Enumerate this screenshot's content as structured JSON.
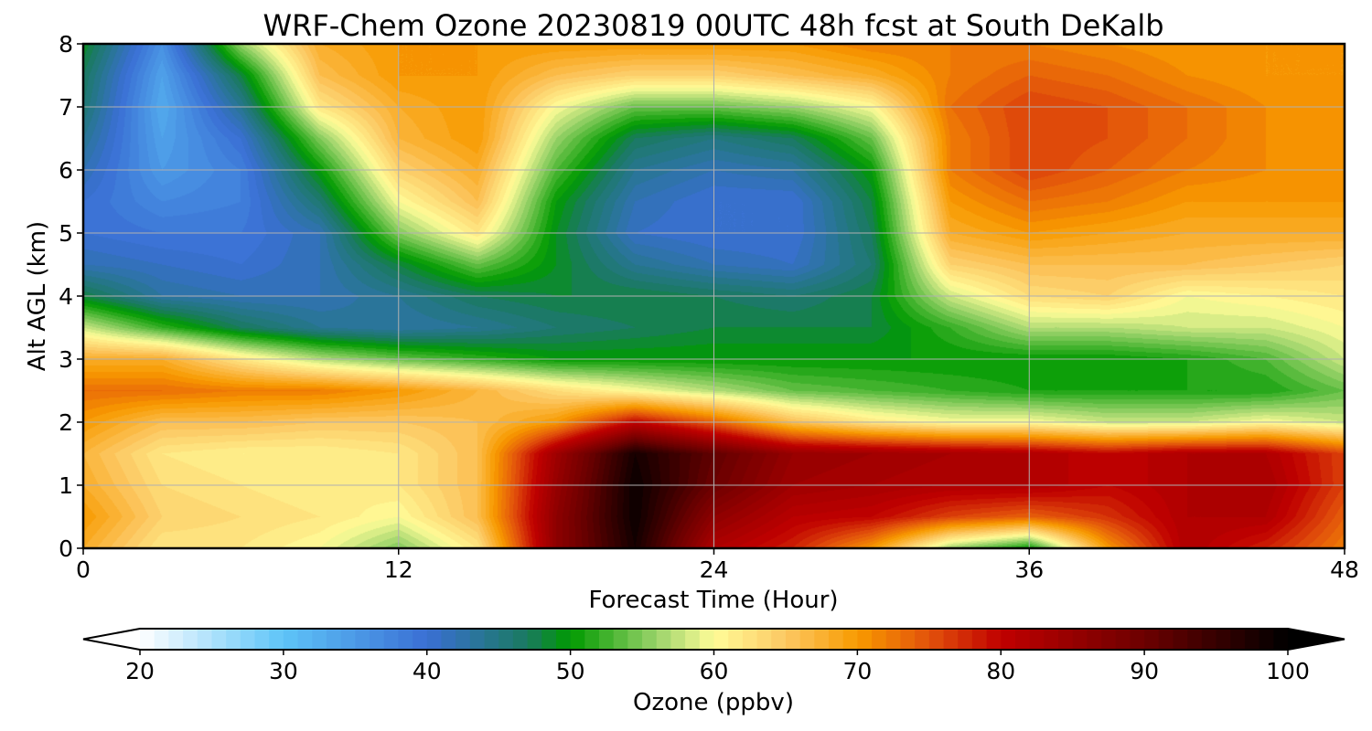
{
  "chart_data": {
    "type": "heatmap",
    "title": "WRF-Chem Ozone  20230819 00UTC 48h fcst at South DeKalb",
    "xlabel": "Forecast Time (Hour)",
    "ylabel": "Alt AGL (km)",
    "xlim": [
      0,
      48
    ],
    "ylim": [
      0,
      8
    ],
    "xticks": [
      0,
      12,
      24,
      36,
      48
    ],
    "yticks": [
      0,
      1,
      2,
      3,
      4,
      5,
      6,
      7,
      8
    ],
    "grid": true,
    "colorbar": {
      "label": "Ozone  (ppbv)",
      "orientation": "horizontal",
      "position": "bottom",
      "range": [
        20,
        100
      ],
      "ticks": [
        20,
        30,
        40,
        50,
        60,
        70,
        80,
        90,
        100
      ],
      "extend": "both",
      "levels": 80,
      "color_stops": [
        {
          "value": 20,
          "color": "#ffffff"
        },
        {
          "value": 30,
          "color": "#5ec4f8"
        },
        {
          "value": 40,
          "color": "#3a6fd4"
        },
        {
          "value": 47,
          "color": "#1a7a60"
        },
        {
          "value": 50,
          "color": "#009a00"
        },
        {
          "value": 56,
          "color": "#9ad36a"
        },
        {
          "value": 60,
          "color": "#fffc98"
        },
        {
          "value": 65,
          "color": "#fcc863"
        },
        {
          "value": 70,
          "color": "#f89a00"
        },
        {
          "value": 75,
          "color": "#e2520b"
        },
        {
          "value": 80,
          "color": "#c00000"
        },
        {
          "value": 90,
          "color": "#6c0000"
        },
        {
          "value": 100,
          "color": "#000000"
        }
      ]
    },
    "x": [
      0,
      3,
      6,
      9,
      12,
      15,
      18,
      21,
      24,
      27,
      30,
      33,
      36,
      39,
      42,
      45,
      48
    ],
    "y": [
      0,
      0.5,
      1,
      1.5,
      2,
      2.5,
      3,
      3.5,
      4,
      4.5,
      5,
      5.5,
      6,
      6.5,
      7,
      7.5,
      8
    ],
    "z": [
      [
        68,
        62,
        62,
        60,
        55,
        62,
        86,
        98,
        82,
        78,
        70,
        56,
        50,
        70,
        82,
        78,
        72
      ],
      [
        70,
        64,
        63,
        62,
        60,
        66,
        86,
        99,
        86,
        81,
        80,
        76,
        74,
        77,
        82,
        82,
        74
      ],
      [
        68,
        63,
        62,
        61,
        62,
        66,
        85,
        99,
        90,
        84,
        83,
        82,
        82,
        80,
        82,
        83,
        76
      ],
      [
        67,
        62,
        61,
        61,
        62,
        66,
        84,
        98,
        91,
        85,
        84,
        83,
        82,
        80,
        82,
        82,
        76
      ],
      [
        70,
        66,
        66,
        65,
        65,
        66,
        70,
        80,
        74,
        66,
        62,
        60,
        60,
        58,
        58,
        60,
        58
      ],
      [
        73,
        73,
        72,
        72,
        70,
        67,
        63,
        60,
        57,
        54,
        53,
        52,
        51,
        51,
        51,
        51,
        54
      ],
      [
        68,
        68,
        62,
        57,
        54,
        52,
        50,
        50,
        50,
        50,
        50,
        50,
        50,
        50,
        51,
        53,
        58
      ],
      [
        58,
        52,
        47,
        44,
        43,
        44,
        46,
        47,
        48,
        48,
        48,
        52,
        57,
        57,
        58,
        58,
        60
      ],
      [
        48,
        43,
        42,
        42,
        44,
        47,
        48,
        48,
        47,
        46,
        48,
        58,
        63,
        64,
        60,
        61,
        62
      ],
      [
        42,
        41,
        40,
        42,
        48,
        54,
        49,
        44,
        42,
        41,
        46,
        64,
        66,
        66,
        66,
        65,
        64
      ],
      [
        40,
        39,
        39,
        42,
        55,
        62,
        49,
        41,
        40,
        40,
        47,
        68,
        70,
        69,
        68,
        68,
        68
      ],
      [
        40,
        37,
        38,
        46,
        60,
        66,
        50,
        42,
        40,
        40,
        48,
        70,
        73,
        72,
        70,
        70,
        70
      ],
      [
        42,
        35,
        38,
        50,
        64,
        68,
        53,
        44,
        42,
        43,
        50,
        72,
        76,
        74,
        72,
        71,
        70
      ],
      [
        44,
        34,
        40,
        55,
        67,
        70,
        56,
        47,
        45,
        47,
        54,
        72,
        76,
        75,
        73,
        71,
        70
      ],
      [
        46,
        33,
        44,
        62,
        68,
        70,
        60,
        54,
        54,
        56,
        60,
        73,
        76,
        75,
        73,
        71,
        70
      ],
      [
        47,
        34,
        48,
        66,
        70,
        70,
        66,
        64,
        64,
        66,
        68,
        72,
        74,
        73,
        71,
        70,
        70
      ],
      [
        49,
        36,
        56,
        68,
        70,
        70,
        70,
        70,
        70,
        70,
        72,
        72,
        72,
        71,
        70,
        70,
        70
      ]
    ]
  }
}
